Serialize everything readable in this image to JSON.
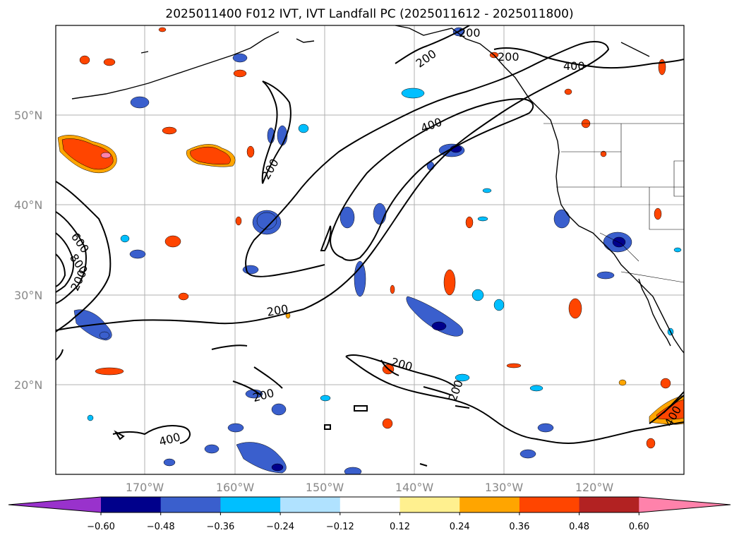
{
  "title": "2025011400 F012 IVT, IVT Landfall PC (2025011612 - 2025011800)",
  "lat_labels": [
    "50°N",
    "40°N",
    "30°N",
    "20°N"
  ],
  "lon_labels": [
    "170°W",
    "160°W",
    "150°W",
    "140°W",
    "130°W",
    "120°W"
  ],
  "colorbar": {
    "colors": [
      "#9932cc",
      "#00008b",
      "#3a5fcd",
      "#00bfff",
      "#b0e2ff",
      "#ffffff",
      "#fff08f",
      "#ffa500",
      "#ff4500",
      "#b22222",
      "#ff82ab"
    ],
    "tick_labels": [
      "−0.60",
      "−0.48",
      "−0.36",
      "−0.24",
      "−0.12",
      "0.12",
      "0.24",
      "0.36",
      "0.48",
      "0.60"
    ]
  },
  "contour_labels": [
    "200",
    "200",
    "400",
    "200",
    "400",
    "600",
    "800",
    "200",
    "200",
    "200",
    "200",
    "400",
    "200",
    "400",
    "200"
  ]
}
